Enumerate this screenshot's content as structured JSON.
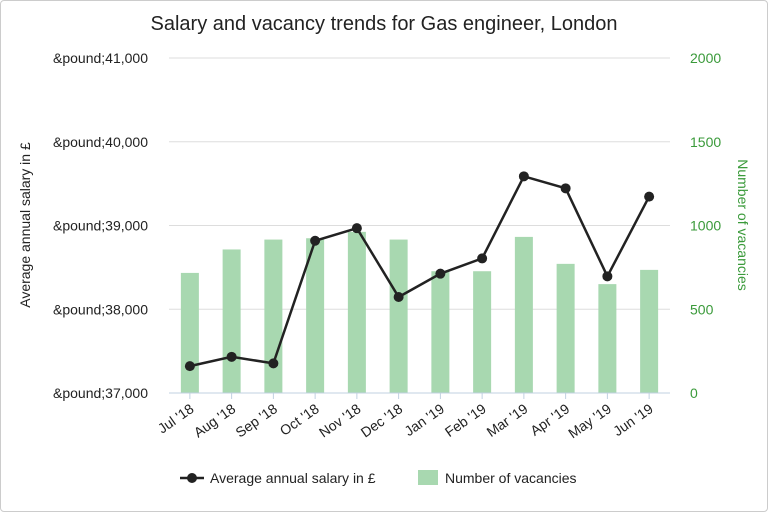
{
  "chart_data": {
    "type": "bar+line",
    "title": "Salary and vacancy trends for Gas engineer, London",
    "categories": [
      "Jul '18",
      "Aug '18",
      "Sep '18",
      "Oct '18",
      "Nov '18",
      "Dec '18",
      "Jan '19",
      "Feb '19",
      "Mar '19",
      "Apr '19",
      "May '19",
      "Jun '19"
    ],
    "y_left": {
      "label": "Average annual salary in £",
      "range": [
        37000,
        41000
      ],
      "ticks": [
        37000,
        38000,
        39000,
        40000,
        41000
      ],
      "tick_labels": [
        "&pound;37,000",
        "&pound;38,000",
        "&pound;39,000",
        "&pound;40,000",
        "&pound;41,000"
      ]
    },
    "y_right": {
      "label": "Number of vacancies",
      "range": [
        0,
        2000
      ],
      "ticks": [
        0,
        500,
        1000,
        1500,
        2000
      ],
      "tick_labels": [
        "0",
        "500",
        "1000",
        "1500",
        "2000"
      ],
      "color": "#3a9a3a"
    },
    "series": [
      {
        "name": "Average annual salary in £",
        "type": "line",
        "axis": "left",
        "color": "#222222",
        "values": [
          37321,
          37432,
          37354,
          38818,
          38968,
          38146,
          38425,
          38607,
          39587,
          39444,
          38393,
          39345
        ]
      },
      {
        "name": "Number of vacancies",
        "type": "bar",
        "axis": "right",
        "color": "#a8d8b0",
        "values": [
          717,
          857,
          916,
          924,
          962,
          916,
          727,
          727,
          932,
          771,
          650,
          735
        ]
      }
    ],
    "grid": true,
    "legend": "bottom"
  }
}
